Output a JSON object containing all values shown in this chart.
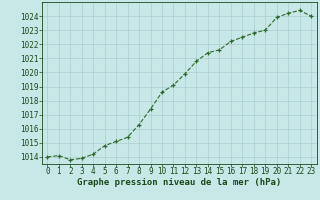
{
  "x": [
    0,
    1,
    2,
    3,
    4,
    5,
    6,
    7,
    8,
    9,
    10,
    11,
    12,
    13,
    14,
    15,
    16,
    17,
    18,
    19,
    20,
    21,
    22,
    23
  ],
  "y": [
    1014.0,
    1014.1,
    1013.8,
    1013.9,
    1014.2,
    1014.8,
    1015.1,
    1015.4,
    1016.3,
    1017.4,
    1018.6,
    1019.1,
    1019.9,
    1020.8,
    1021.4,
    1021.6,
    1022.2,
    1022.5,
    1022.8,
    1023.0,
    1023.9,
    1024.2,
    1024.4,
    1024.0
  ],
  "line_color": "#2d6a2d",
  "marker_color": "#2d6a2d",
  "bg_color": "#c8e8e8",
  "grid_color": "#aacece",
  "title": "Graphe pression niveau de la mer (hPa)",
  "ylim_min": 1013.5,
  "ylim_max": 1025.0,
  "xlim_min": -0.5,
  "xlim_max": 23.5,
  "ytick_min": 1014,
  "ytick_max": 1024,
  "title_color": "#1a4a1a",
  "title_fontsize": 6.5,
  "tick_fontsize": 5.5,
  "tick_color": "#1a4a1a"
}
